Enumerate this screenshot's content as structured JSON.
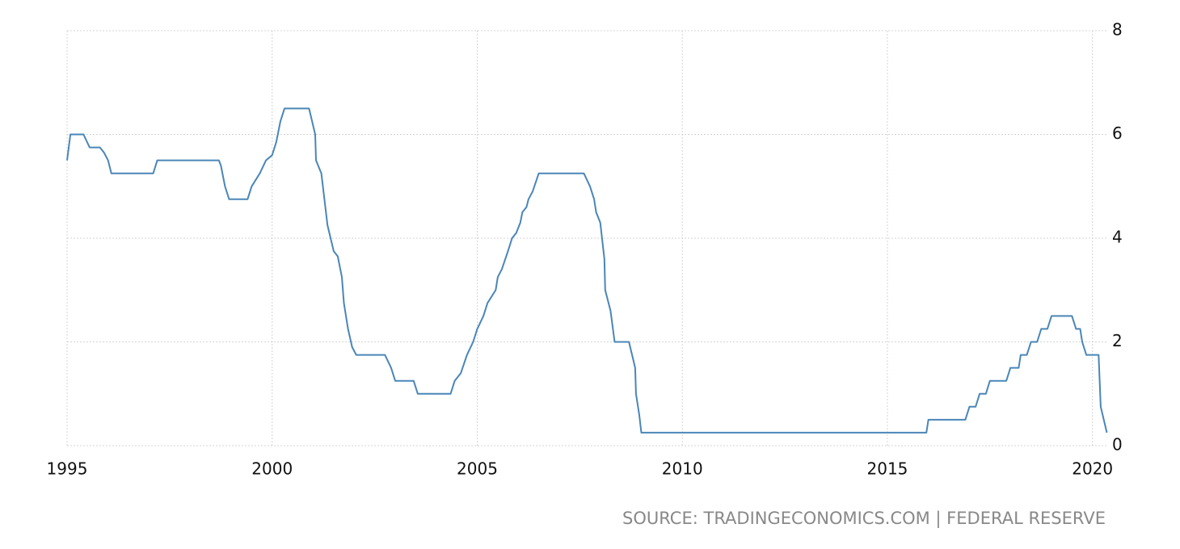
{
  "chart_data": {
    "type": "line",
    "source": "SOURCE: TRADINGECONOMICS.COM | FEDERAL RESERVE",
    "x": [
      1995.0,
      1995.08,
      1995.4,
      1995.55,
      1995.8,
      1995.9,
      1996.0,
      1996.08,
      1997.1,
      1997.2,
      1998.7,
      1998.75,
      1998.85,
      1998.95,
      1999.4,
      1999.5,
      1999.7,
      1999.85,
      2000.0,
      2000.1,
      2000.2,
      2000.3,
      2000.9,
      2001.05,
      2001.07,
      2001.2,
      2001.35,
      2001.5,
      2001.6,
      2001.7,
      2001.75,
      2001.85,
      2001.95,
      2002.05,
      2002.75,
      2002.9,
      2003.0,
      2003.45,
      2003.55,
      2004.35,
      2004.45,
      2004.6,
      2004.75,
      2004.9,
      2005.0,
      2005.15,
      2005.25,
      2005.45,
      2005.5,
      2005.6,
      2005.75,
      2005.85,
      2005.95,
      2006.05,
      2006.1,
      2006.2,
      2006.25,
      2006.35,
      2006.5,
      2007.6,
      2007.75,
      2007.85,
      2007.9,
      2008.0,
      2008.1,
      2008.12,
      2008.25,
      2008.35,
      2008.7,
      2008.85,
      2008.87,
      2008.95,
      2009.0,
      2015.95,
      2016.0,
      2016.9,
      2017.0,
      2017.15,
      2017.25,
      2017.4,
      2017.5,
      2017.9,
      2018.0,
      2018.2,
      2018.25,
      2018.4,
      2018.5,
      2018.65,
      2018.75,
      2018.9,
      2019.0,
      2019.5,
      2019.6,
      2019.7,
      2019.75,
      2019.85,
      2020.15,
      2020.2,
      2020.35
    ],
    "series": [
      {
        "color": "#4a86b8",
        "values": [
          5.5,
          6.0,
          6.0,
          5.75,
          5.75,
          5.65,
          5.5,
          5.25,
          5.25,
          5.5,
          5.5,
          5.4,
          5.0,
          4.75,
          4.75,
          5.0,
          5.25,
          5.5,
          5.6,
          5.85,
          6.25,
          6.5,
          6.5,
          6.0,
          5.5,
          5.25,
          4.25,
          3.75,
          3.65,
          3.25,
          2.75,
          2.25,
          1.9,
          1.75,
          1.75,
          1.5,
          1.25,
          1.25,
          1.0,
          1.0,
          1.25,
          1.4,
          1.75,
          2.0,
          2.25,
          2.5,
          2.75,
          3.0,
          3.25,
          3.4,
          3.75,
          4.0,
          4.1,
          4.3,
          4.5,
          4.6,
          4.75,
          4.9,
          5.25,
          5.25,
          5.0,
          4.75,
          4.5,
          4.3,
          3.6,
          3.0,
          2.6,
          2.0,
          2.0,
          1.5,
          1.0,
          0.6,
          0.25,
          0.25,
          0.5,
          0.5,
          0.75,
          0.75,
          1.0,
          1.0,
          1.25,
          1.25,
          1.5,
          1.5,
          1.75,
          1.75,
          2.0,
          2.0,
          2.25,
          2.25,
          2.5,
          2.5,
          2.25,
          2.25,
          2.0,
          1.75,
          1.75,
          0.75,
          0.25
        ]
      }
    ],
    "xlim": [
      1995,
      2020.4
    ],
    "xticks": [
      1995,
      2000,
      2005,
      2010,
      2015,
      2020
    ],
    "ylim": [
      0,
      8
    ],
    "yticks": [
      0,
      2,
      4,
      6,
      8
    ],
    "grid": true
  }
}
